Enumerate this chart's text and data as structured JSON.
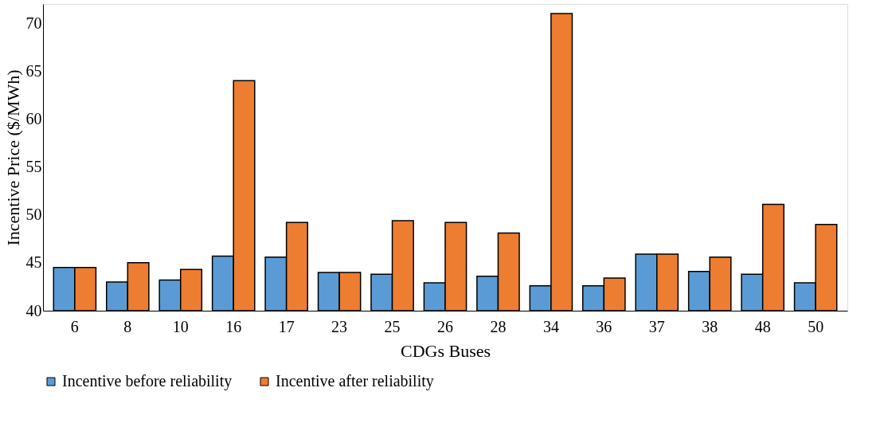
{
  "chart_data": {
    "type": "bar",
    "xlabel": "CDGs Buses",
    "ylabel": "Incentive Price ($/MWh)",
    "categories": [
      "6",
      "8",
      "10",
      "16",
      "17",
      "23",
      "25",
      "26",
      "28",
      "34",
      "36",
      "37",
      "38",
      "48",
      "50"
    ],
    "series": [
      {
        "name": "Incentive before reliability",
        "color": "#5b9bd5",
        "values": [
          44.5,
          43.0,
          43.2,
          45.7,
          45.6,
          44.0,
          43.8,
          42.9,
          43.6,
          42.6,
          42.6,
          45.9,
          44.1,
          43.8,
          42.9
        ]
      },
      {
        "name": "Incentive after reliability",
        "color": "#ed7d31",
        "values": [
          44.5,
          45.0,
          44.3,
          64.0,
          49.2,
          44.0,
          49.4,
          49.2,
          48.1,
          71.0,
          43.4,
          45.9,
          45.6,
          51.1,
          49.0
        ]
      }
    ],
    "ylim": [
      40,
      72
    ],
    "yticks": [
      40,
      45,
      50,
      55,
      60,
      65,
      70
    ],
    "grid": false,
    "legend": "bottom"
  }
}
